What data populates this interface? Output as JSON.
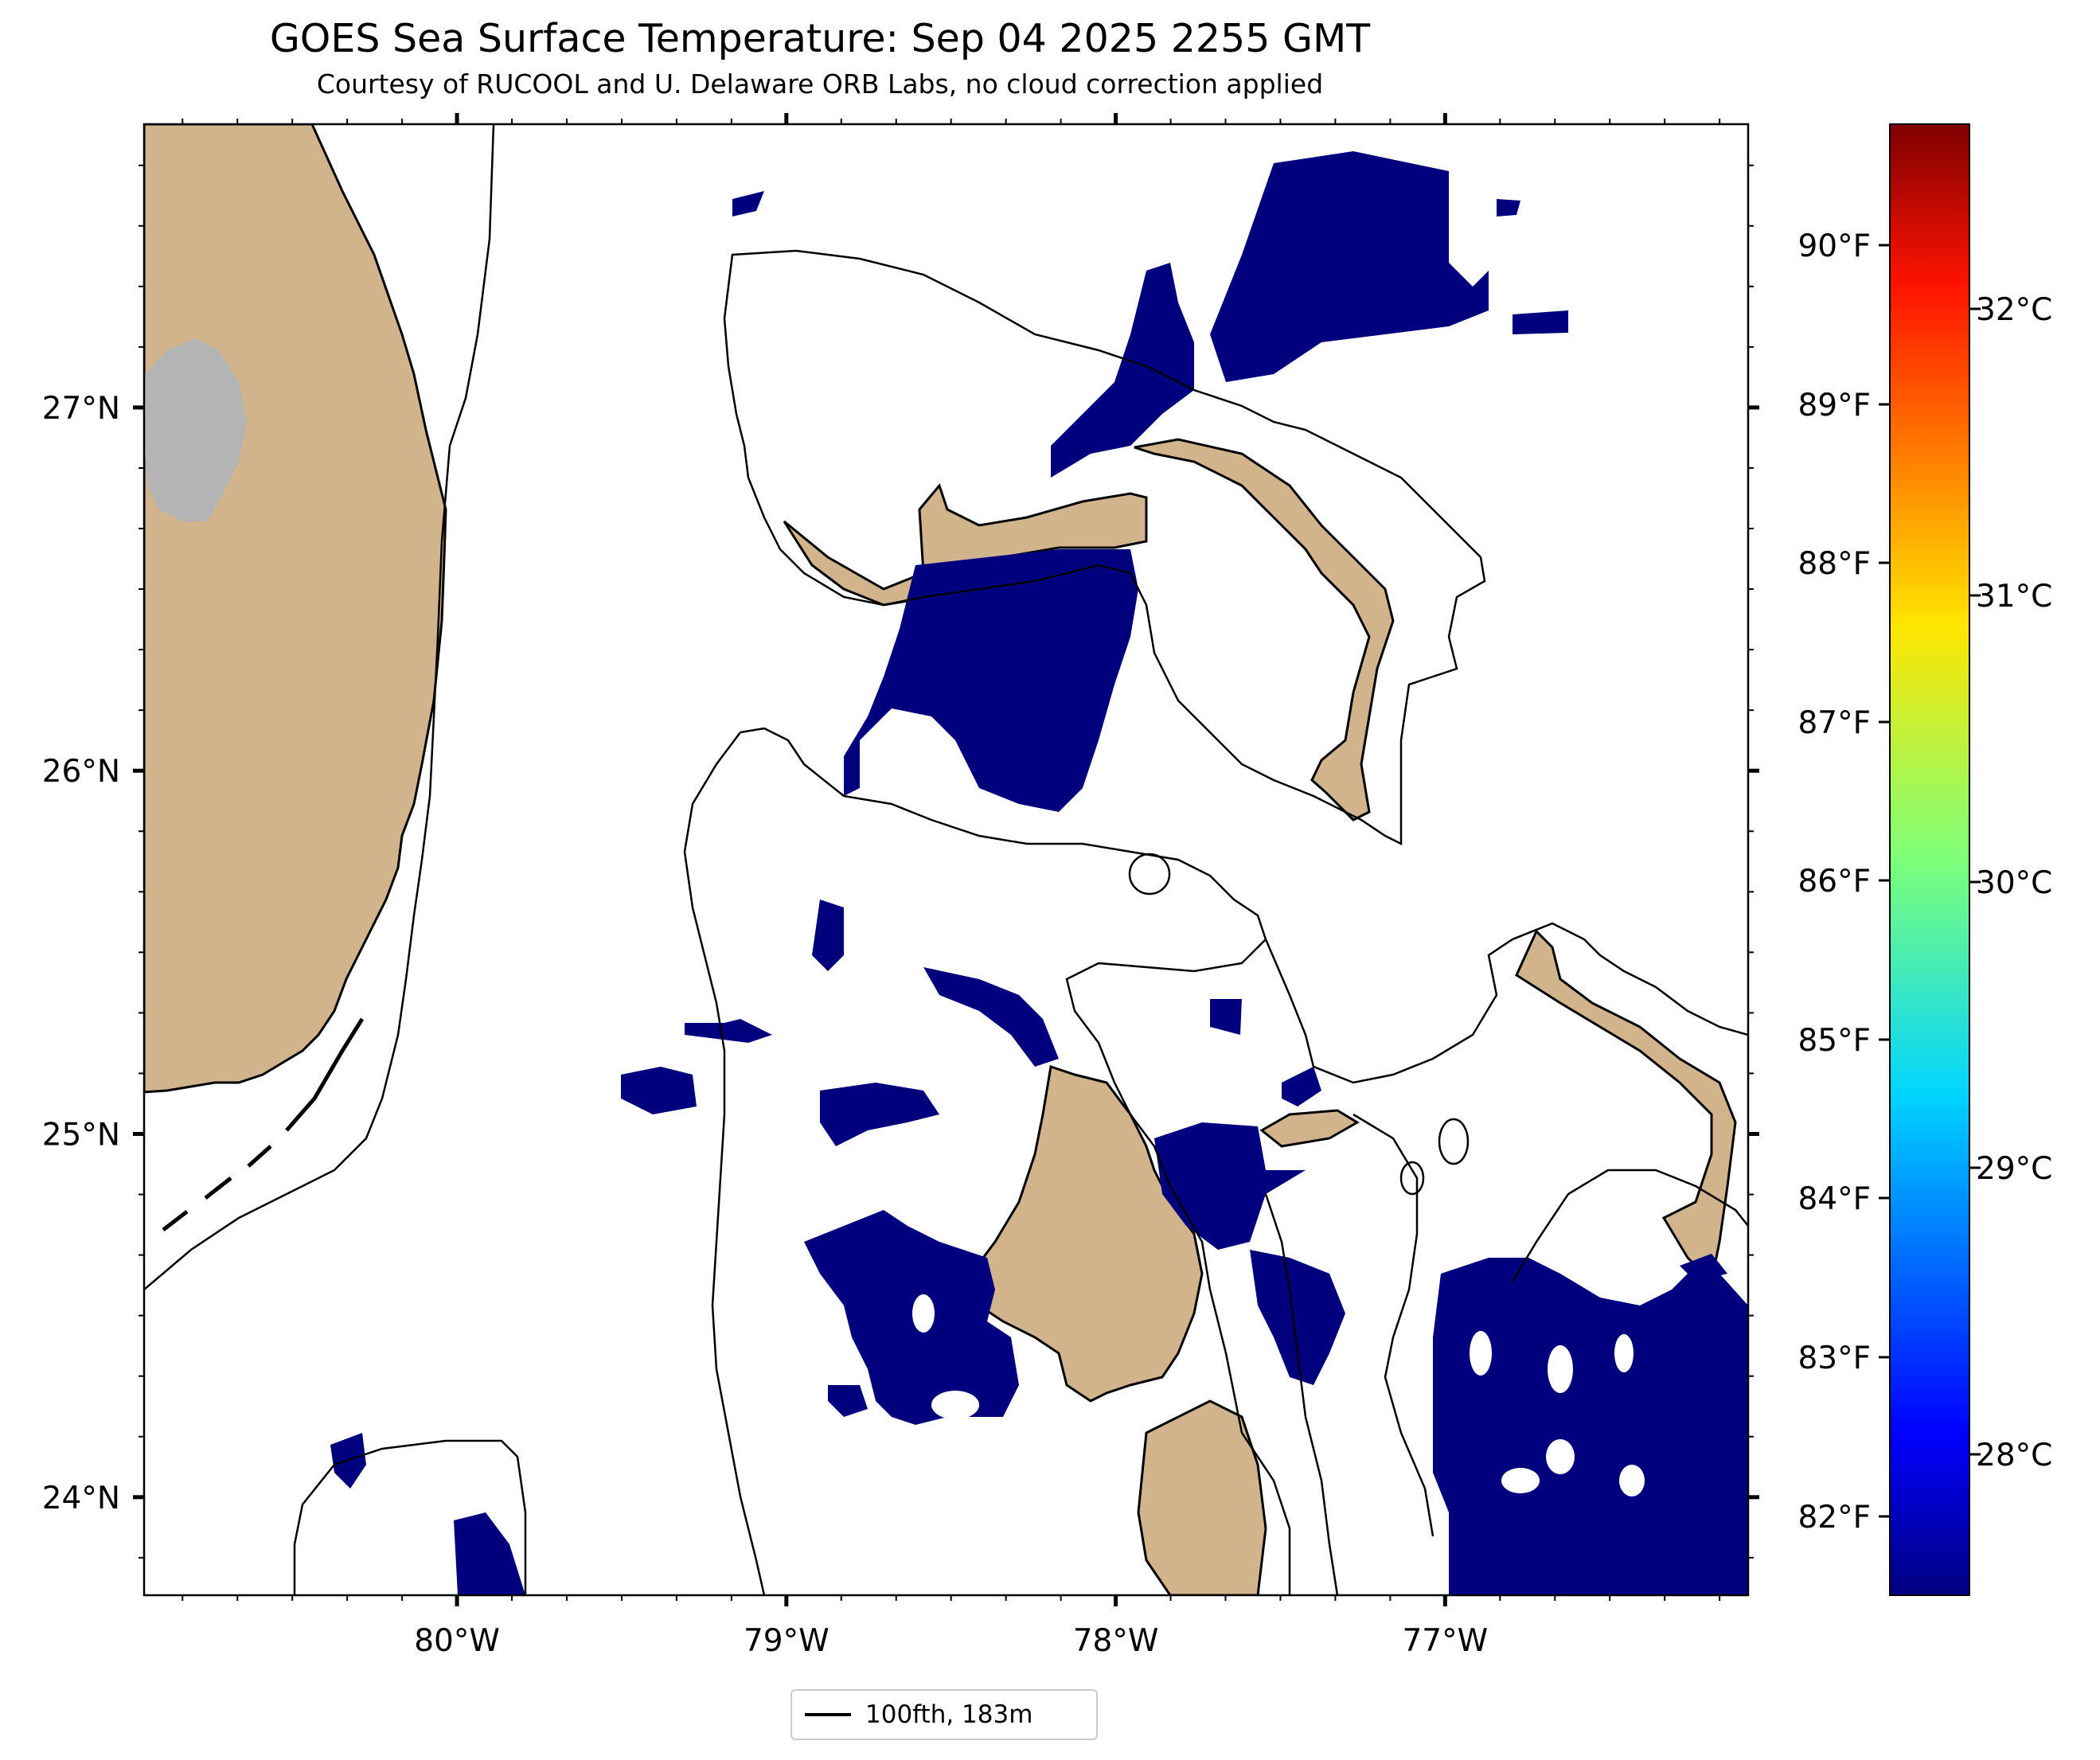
{
  "title": "GOES Sea Surface Temperature: Sep 04 2025 2255 GMT",
  "subtitle": "Courtesy of RUCOOL and U. Delaware ORB Labs, no cloud correction applied",
  "map": {
    "lat_labels": [
      "27°N",
      "26°N",
      "25°N",
      "24°N"
    ],
    "lat_values": [
      27,
      26,
      25,
      24
    ],
    "lon_labels": [
      "80°W",
      "79°W",
      "78°W",
      "77°W"
    ],
    "lon_values": [
      -80,
      -79,
      -78,
      -77
    ],
    "extent": {
      "lon_min": -80.95,
      "lon_max": -76.08,
      "lat_min": 23.73,
      "lat_max": 27.78
    },
    "colors": {
      "land": "#d2b48c",
      "lake": "#b4b4b4",
      "cold_sst": "#00007f",
      "water": "#ffffff",
      "contour": "#000000"
    }
  },
  "colorbar": {
    "f_labels": [
      "90°F",
      "89°F",
      "88°F",
      "87°F",
      "86°F",
      "85°F",
      "84°F",
      "83°F",
      "82°F"
    ],
    "c_labels": [
      "32°C",
      "31°C",
      "30°C",
      "29°C",
      "28°C"
    ],
    "colormap": "jet"
  },
  "legend": {
    "label": "100fth, 183m"
  }
}
